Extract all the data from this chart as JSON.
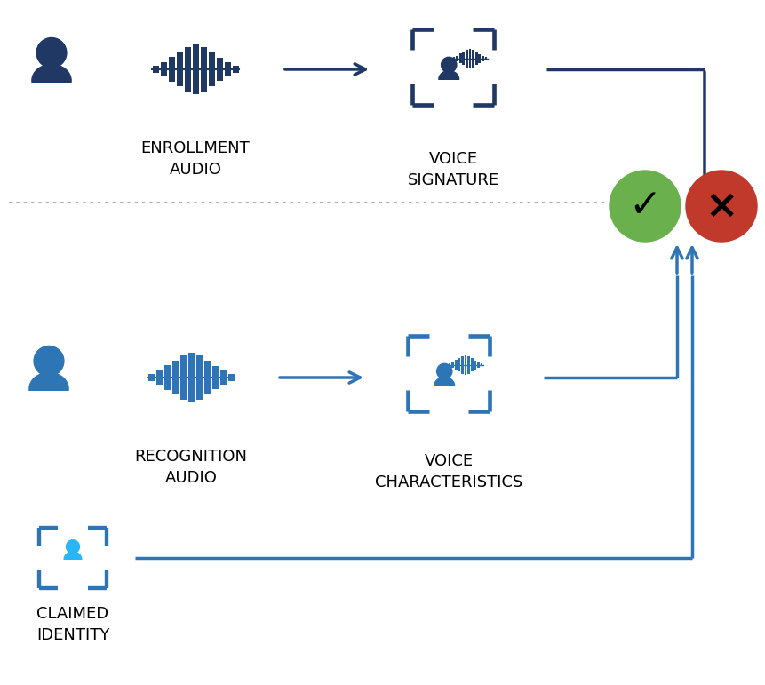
{
  "dark_blue": "#1f3864",
  "mid_blue": "#2E75B6",
  "light_blue": "#29b6f6",
  "green": "#6ab04c",
  "red": "#c0392b",
  "bg": "#ffffff",
  "label_enrollment_audio": "ENROLLMENT\nAUDIO",
  "label_voice_signature": "VOICE\nSIGNATURE",
  "label_recognition_audio": "RECOGNITION\nAUDIO",
  "label_voice_characteristics": "VOICE\nCHARACTERISTICS",
  "label_claimed_identity": "CLAIMED\nIDENTITY",
  "fontsize_labels": 13,
  "arrow_dark": "#1f3864",
  "arrow_blue": "#2E75B6"
}
